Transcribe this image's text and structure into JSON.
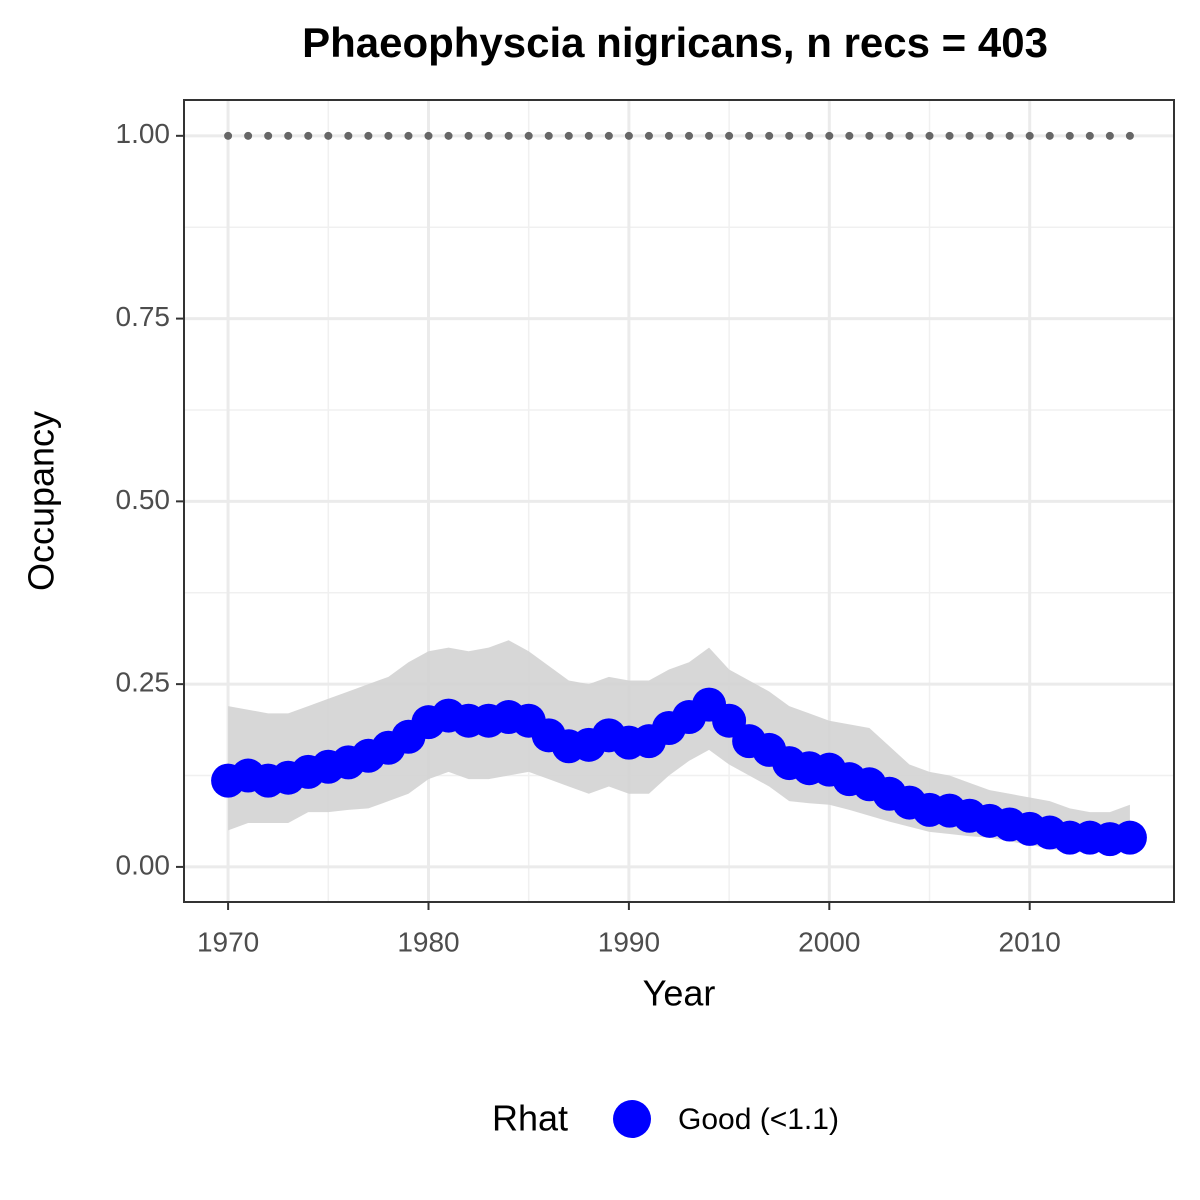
{
  "chart_data": {
    "type": "line",
    "title": "Phaeophyscia nigricans, n recs = 403",
    "x_label": "Year",
    "y_label": "Occupancy",
    "legend_title": "Rhat",
    "legend_position": "bottom",
    "x": [
      1970,
      1971,
      1972,
      1973,
      1974,
      1975,
      1976,
      1977,
      1978,
      1979,
      1980,
      1981,
      1982,
      1983,
      1984,
      1985,
      1986,
      1987,
      1988,
      1989,
      1990,
      1991,
      1992,
      1993,
      1994,
      1995,
      1996,
      1997,
      1998,
      1999,
      2000,
      2001,
      2002,
      2003,
      2004,
      2005,
      2006,
      2007,
      2008,
      2009,
      2010,
      2011,
      2012,
      2013,
      2014,
      2015
    ],
    "series": [
      {
        "name": "Good (<1.1)",
        "color": "#0000ff",
        "values": [
          0.118,
          0.125,
          0.118,
          0.122,
          0.13,
          0.137,
          0.143,
          0.152,
          0.163,
          0.178,
          0.198,
          0.207,
          0.2,
          0.2,
          0.205,
          0.2,
          0.18,
          0.165,
          0.167,
          0.18,
          0.17,
          0.172,
          0.19,
          0.205,
          0.222,
          0.2,
          0.172,
          0.16,
          0.142,
          0.135,
          0.133,
          0.12,
          0.113,
          0.1,
          0.088,
          0.078,
          0.077,
          0.07,
          0.063,
          0.058,
          0.052,
          0.047,
          0.04,
          0.04,
          0.038,
          0.04
        ]
      }
    ],
    "band": {
      "color": "#d3d3d3",
      "upper": [
        0.22,
        0.215,
        0.21,
        0.21,
        0.22,
        0.23,
        0.24,
        0.25,
        0.26,
        0.28,
        0.295,
        0.3,
        0.295,
        0.3,
        0.31,
        0.295,
        0.275,
        0.255,
        0.25,
        0.26,
        0.255,
        0.255,
        0.27,
        0.28,
        0.3,
        0.27,
        0.255,
        0.24,
        0.22,
        0.21,
        0.2,
        0.195,
        0.19,
        0.165,
        0.14,
        0.13,
        0.125,
        0.115,
        0.105,
        0.1,
        0.095,
        0.09,
        0.08,
        0.075,
        0.075,
        0.085
      ],
      "lower": [
        0.05,
        0.06,
        0.06,
        0.06,
        0.075,
        0.075,
        0.078,
        0.08,
        0.09,
        0.1,
        0.12,
        0.13,
        0.12,
        0.12,
        0.125,
        0.13,
        0.12,
        0.11,
        0.1,
        0.11,
        0.1,
        0.1,
        0.125,
        0.145,
        0.16,
        0.14,
        0.125,
        0.11,
        0.09,
        0.087,
        0.085,
        0.078,
        0.07,
        0.062,
        0.055,
        0.048,
        0.045,
        0.042,
        0.04,
        0.035,
        0.03,
        0.025,
        0.02,
        0.02,
        0.02,
        0.02
      ]
    },
    "reference_line": {
      "value": 1,
      "color": "#666666"
    },
    "xlim": [
      1967.8,
      2017.2
    ],
    "ylim": [
      -0.048,
      1.049
    ],
    "xticks": [
      1970,
      1980,
      1990,
      2000,
      2010
    ],
    "yticks": [
      {
        "value": 0,
        "label": "0.00"
      },
      {
        "value": 0.25,
        "label": "0.25"
      },
      {
        "value": 0.5,
        "label": "0.50"
      },
      {
        "value": 0.75,
        "label": "0.75"
      },
      {
        "value": 1,
        "label": "1.00"
      }
    ],
    "grid": true
  }
}
